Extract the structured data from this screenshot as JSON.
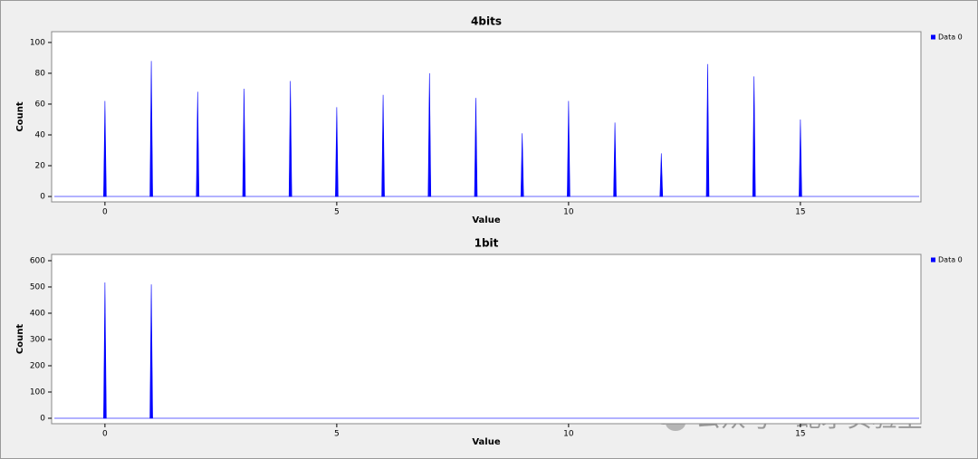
{
  "chart_data": [
    {
      "type": "spike",
      "title": "4bits",
      "x_label": "Value",
      "y_label": "Count",
      "x": [
        0,
        1,
        2,
        3,
        4,
        5,
        6,
        7,
        8,
        9,
        10,
        11,
        12,
        13,
        14,
        15
      ],
      "series": [
        {
          "name": "Data 0",
          "color": "#0000ff",
          "values": [
            62,
            88,
            68,
            70,
            75,
            58,
            66,
            80,
            64,
            41,
            62,
            48,
            28,
            86,
            78,
            50
          ]
        }
      ],
      "xlim": [
        -1.15,
        17.6
      ],
      "ylim": [
        -3.5,
        107
      ],
      "xticks": [
        0,
        5,
        10,
        15
      ],
      "yticks": [
        0,
        20,
        40,
        60,
        80,
        100
      ],
      "legend": "outside-right"
    },
    {
      "type": "spike",
      "title": "1bit",
      "x_label": "Value",
      "y_label": "Count",
      "x": [
        0,
        1
      ],
      "series": [
        {
          "name": "Data 0",
          "color": "#0000ff",
          "values": [
            517,
            510
          ]
        }
      ],
      "xlim": [
        -1.15,
        17.6
      ],
      "ylim": [
        -20.7,
        624
      ],
      "xticks": [
        0,
        5,
        10,
        15
      ],
      "yticks": [
        0,
        100,
        200,
        300,
        400,
        500,
        600
      ],
      "legend": "outside-right"
    }
  ],
  "watermark": "公众号 · 蛇矛实验室"
}
